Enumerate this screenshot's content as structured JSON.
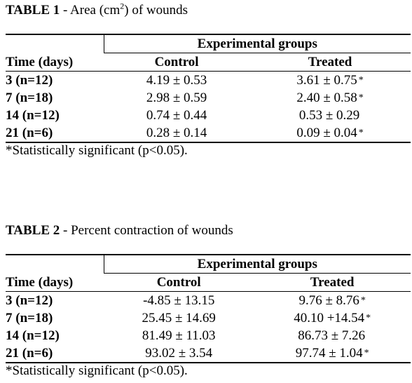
{
  "table1": {
    "label": "TABLE 1",
    "title_pre": " - Area (cm",
    "title_sup": "2",
    "title_post": ") of wounds",
    "group_header": "Experimental groups",
    "time_header": "Time (days)",
    "control_header": "Control",
    "treated_header": "Treated",
    "rows": [
      {
        "time": "3 (n=12)",
        "control": "4.19 ± 0.53",
        "treated": "3.61 ± 0.75",
        "mark": "*"
      },
      {
        "time": "7 (n=18)",
        "control": "2.98 ± 0.59",
        "treated": "2.40 ± 0.58",
        "mark": "*"
      },
      {
        "time": "14 (n=12)",
        "control": "0.74 ± 0.44",
        "treated": "0.53 ± 0.29",
        "mark": ""
      },
      {
        "time": "21 (n=6)",
        "control": "0.28 ± 0.14",
        "treated": "0.09 ± 0.04",
        "mark": "*"
      }
    ],
    "footnote": "*Statistically significant (p<0.05)."
  },
  "table2": {
    "label": "TABLE 2",
    "title_pre": " - Percent contraction of wounds",
    "group_header": "Experimental groups",
    "time_header": "Time (days)",
    "control_header": "Control",
    "treated_header": "Treated",
    "rows": [
      {
        "time": "3 (n=12)",
        "control": "-4.85 ± 13.15",
        "treated": "9.76 ± 8.76",
        "mark": "*"
      },
      {
        "time": "7 (n=18)",
        "control": "25.45 ± 14.69",
        "treated": "40.10 +14.54",
        "mark": "*"
      },
      {
        "time": "14 (n=12)",
        "control": "81.49 ± 11.03",
        "treated": "86.73 ± 7.26",
        "mark": ""
      },
      {
        "time": "21 (n=6)",
        "control": "93.02 ± 3.54",
        "treated": "97.74 ± 1.04",
        "mark": "*"
      }
    ],
    "footnote": "*Statistically significant (p<0.05)."
  }
}
